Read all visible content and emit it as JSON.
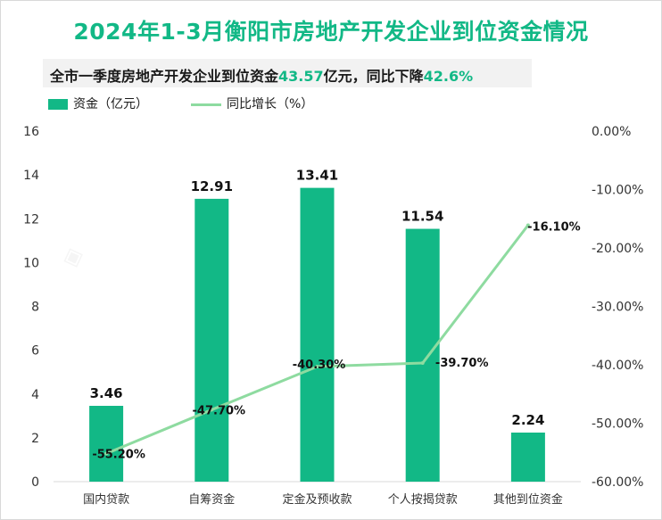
{
  "chart_data": {
    "type": "bar+line",
    "title": "2024年1-3月衡阳市房地产开发企业到位资金情况",
    "subtitle": {
      "prefix": "全市一季度房地产开发企业到位资金",
      "amount": "43.57",
      "middle": "亿元，同比下降",
      "pct": "42.6%"
    },
    "legend": {
      "bar": "资金（亿元）",
      "line": "同比增长（%）"
    },
    "categories": [
      "国内贷款",
      "自筹资金",
      "定金及预收款",
      "个人按揭贷款",
      "其他到位资金"
    ],
    "series": [
      {
        "name": "资金（亿元）",
        "type": "bar",
        "axis": "left",
        "values": [
          3.46,
          12.91,
          13.41,
          11.54,
          2.24
        ],
        "labels": [
          "3.46",
          "12.91",
          "13.41",
          "11.54",
          "2.24"
        ]
      },
      {
        "name": "同比增长（%）",
        "type": "line",
        "axis": "right",
        "values": [
          -55.2,
          -47.7,
          -40.3,
          -39.7,
          -16.1
        ],
        "labels": [
          "-55.20%",
          "-47.70%",
          "-40.30%",
          "-39.70%",
          "-16.10%"
        ]
      }
    ],
    "y_left": {
      "min": 0,
      "max": 16,
      "ticks": [
        0,
        2,
        4,
        6,
        8,
        10,
        12,
        14,
        16
      ],
      "tick_labels": [
        "0",
        "2",
        "4",
        "6",
        "8",
        "10",
        "12",
        "14",
        "16"
      ]
    },
    "y_right": {
      "min": -60,
      "max": 0,
      "ticks": [
        0,
        -10,
        -20,
        -30,
        -40,
        -50,
        -60
      ],
      "tick_labels": [
        "0.00%",
        "-10.00%",
        "-20.00%",
        "-30.00%",
        "-40.00%",
        "-50.00%",
        "-60.00%"
      ]
    },
    "colors": {
      "bar": "#12b886",
      "line": "#8edba0"
    },
    "grid": false
  }
}
